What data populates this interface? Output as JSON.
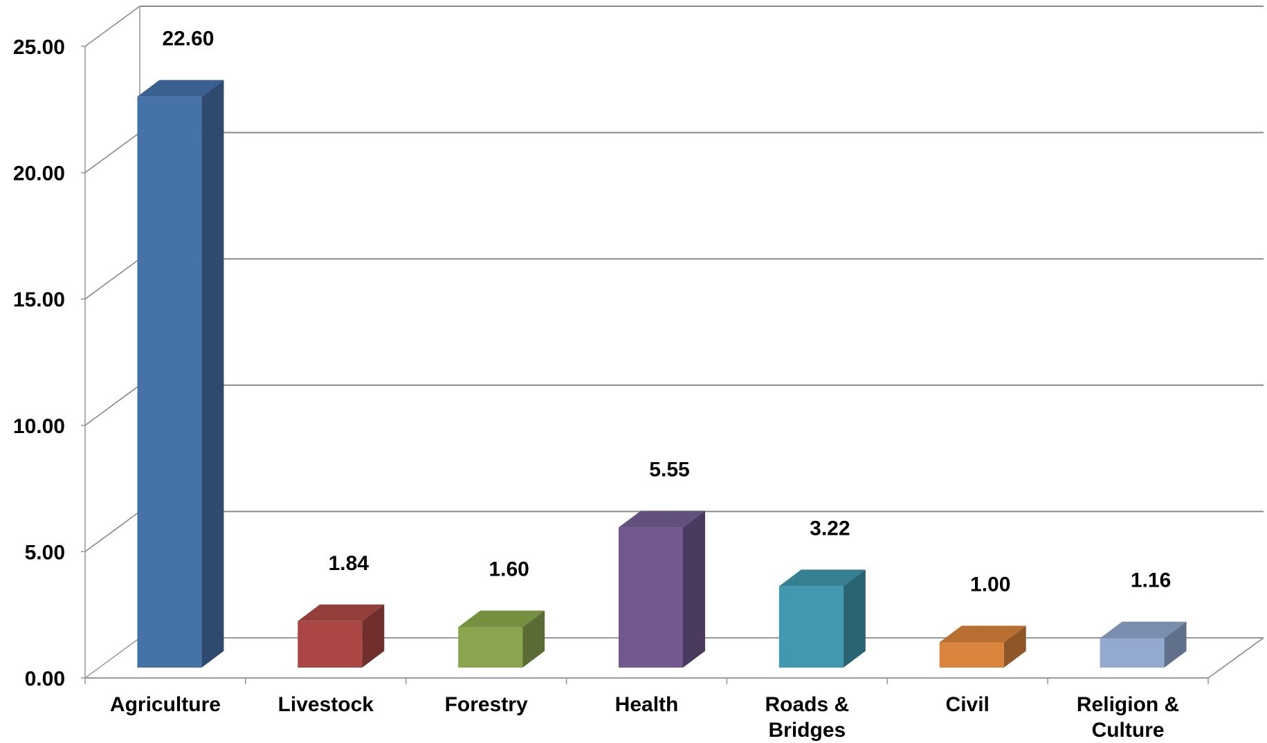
{
  "chart_data": {
    "type": "bar",
    "categories": [
      "Agriculture",
      "Livestock",
      "Forestry",
      "Health",
      "Roads & Bridges",
      "Civil",
      "Religion & Culture"
    ],
    "category_lines": [
      [
        "Agriculture"
      ],
      [
        "Livestock"
      ],
      [
        "Forestry"
      ],
      [
        "Health"
      ],
      [
        "Roads &",
        "Bridges"
      ],
      [
        "Civil"
      ],
      [
        "Religion &",
        "Culture"
      ]
    ],
    "values": [
      22.6,
      1.84,
      1.6,
      5.55,
      3.22,
      1.0,
      1.16
    ],
    "data_labels": [
      "22.60",
      "1.84",
      "1.60",
      "5.55",
      "3.22",
      "1.00",
      "1.16"
    ],
    "yticks": [
      "0.00",
      "5.00",
      "10.00",
      "15.00",
      "20.00",
      "25.00"
    ],
    "ylim": [
      0,
      25
    ],
    "grid": true,
    "legend": "none",
    "title": "",
    "xlabel": "",
    "ylabel": "",
    "colors": {
      "front": [
        "#4572A7",
        "#AA4643",
        "#89A54E",
        "#71588F",
        "#4198AF",
        "#DB843D",
        "#93A9CF"
      ],
      "side": [
        "#2E4A6E",
        "#702E2C",
        "#5A6C33",
        "#4A3A5E",
        "#2A6473",
        "#8F5628",
        "#61708A"
      ],
      "top": [
        "#3A6090",
        "#93403D",
        "#75903F",
        "#62507D",
        "#377F93",
        "#BA6F32",
        "#7A8EB0"
      ],
      "grid": "#888888",
      "axis": "#999999"
    }
  }
}
